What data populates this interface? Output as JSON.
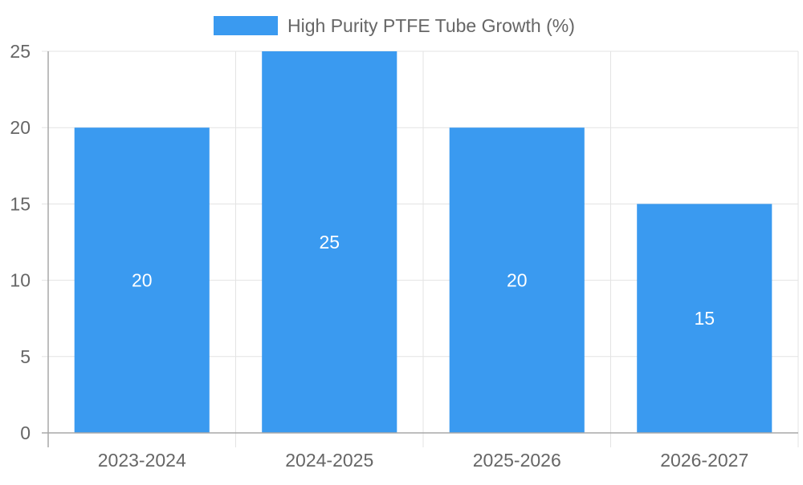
{
  "chart_data": {
    "type": "bar",
    "categories": [
      "2023-2024",
      "2024-2025",
      "2025-2026",
      "2026-2027"
    ],
    "series": [
      {
        "name": "High Purity PTFE Tube Growth (%)",
        "values": [
          20,
          25,
          20,
          15
        ]
      }
    ],
    "y_ticks": [
      "0",
      "5",
      "10",
      "15",
      "20",
      "25"
    ],
    "ylim": [
      0,
      25
    ],
    "grid": true,
    "legend_position": "top-center",
    "data_labels": true,
    "colors": {
      "bar": "#3a9af0",
      "grid": "#e3e3e3",
      "axis": "#a8a8a8",
      "text": "#666666",
      "data_label": "#ffffff"
    }
  }
}
